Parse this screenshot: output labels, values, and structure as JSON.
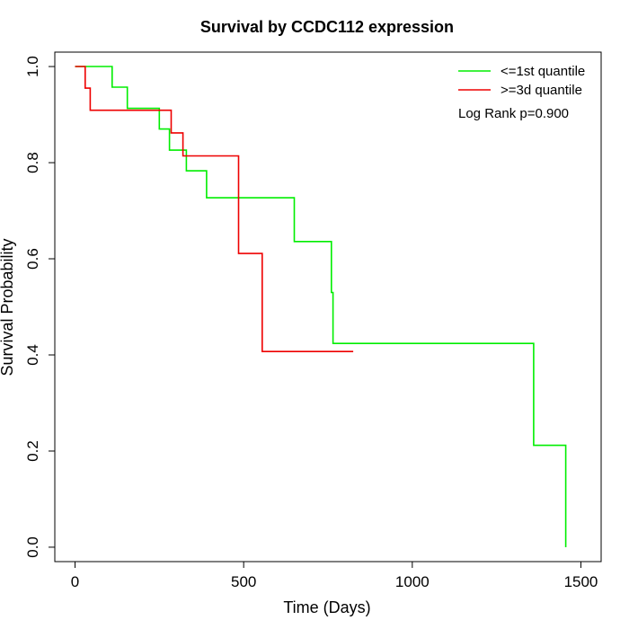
{
  "chart_data": {
    "type": "line",
    "title": "Survival by CCDC112 expression",
    "xlabel": "Time (Days)",
    "ylabel": "Survival Probability",
    "xlim": [
      -60,
      1560
    ],
    "ylim": [
      -0.03,
      1.03
    ],
    "xticks": [
      0,
      500,
      1000,
      1500
    ],
    "yticks": [
      0.0,
      0.2,
      0.4,
      0.6,
      0.8,
      1.0
    ],
    "xtick_labels": [
      "0",
      "500",
      "1000",
      "1500"
    ],
    "ytick_labels": [
      "0.0",
      "0.2",
      "0.4",
      "0.6",
      "0.8",
      "1.0"
    ],
    "legend_position": "top-right",
    "annotation": "Log Rank p=0.900",
    "series": [
      {
        "name": "<=1st quantile",
        "color": "#00ee00",
        "x": [
          0,
          110,
          110,
          155,
          155,
          250,
          250,
          280,
          280,
          330,
          330,
          390,
          390,
          650,
          650,
          760,
          760,
          765,
          765,
          1360,
          1360,
          1455,
          1455
        ],
        "y": [
          1.0,
          1.0,
          0.957,
          0.957,
          0.913,
          0.913,
          0.87,
          0.87,
          0.826,
          0.826,
          0.783,
          0.783,
          0.727,
          0.727,
          0.636,
          0.636,
          0.53,
          0.53,
          0.424,
          0.424,
          0.212,
          0.212,
          0.0
        ]
      },
      {
        "name": ">=3d quantile",
        "color": "#ee0000",
        "x": [
          0,
          30,
          30,
          45,
          45,
          285,
          285,
          320,
          320,
          485,
          485,
          555,
          555,
          825
        ],
        "y": [
          1.0,
          1.0,
          0.955,
          0.955,
          0.909,
          0.909,
          0.862,
          0.862,
          0.814,
          0.814,
          0.611,
          0.611,
          0.407,
          0.407
        ]
      }
    ]
  }
}
